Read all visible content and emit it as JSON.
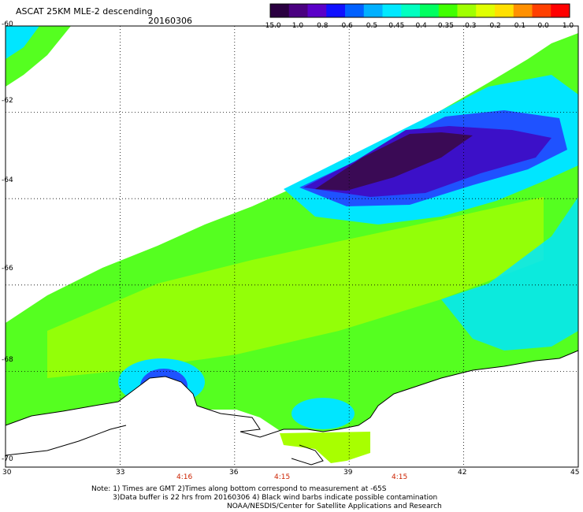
{
  "header": {
    "title": "ASCAT 25KM MLE-2 descending",
    "date": "20160306"
  },
  "colorbar": {
    "colors": [
      "#2a0040",
      "#4a0080",
      "#5a00c8",
      "#1010ff",
      "#0060ff",
      "#00b0ff",
      "#00e8ff",
      "#00ffc0",
      "#00ff60",
      "#40ff00",
      "#a0ff00",
      "#e0ff00",
      "#ffe000",
      "#ff9000",
      "#ff4000",
      "#ff0000"
    ],
    "labels": [
      "-15.0",
      "-1.0",
      "-0.8",
      "-0.6",
      "-0.5",
      "-0.45",
      "-0.4",
      "-0.35",
      "-0.3",
      "-0.2",
      "-0.1",
      "0.0",
      "1.0"
    ]
  },
  "map": {
    "lat_labels": [
      "-60",
      "-62",
      "-64",
      "-66",
      "-68",
      "-70"
    ],
    "lon_labels": [
      "30",
      "33",
      "36",
      "39",
      "42",
      "45"
    ],
    "time_labels": [
      "4:16",
      "4:15",
      "4:15"
    ],
    "palette": {
      "very_low": "#3a0a55",
      "low": "#3c10c8",
      "mid_low": "#1f52ff",
      "cyan": "#00e6ff",
      "green": "#55ff20",
      "yellow_green": "#a8ff00",
      "land": "#ffffff",
      "coast": "#000000"
    }
  },
  "footer": {
    "note1": "Note: 1) Times are GMT  2)Times along bottom correspond to measurement at -65S",
    "note2": "3)Data buffer is 22 hrs from 20160306  4) Black wind barbs indicate possible contamination",
    "note3": "NOAA/NESDIS/Center for Satellite Applications and Research"
  }
}
